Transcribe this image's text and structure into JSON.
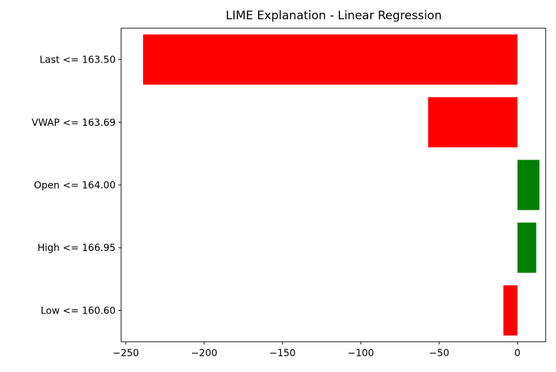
{
  "chart_data": {
    "type": "bar",
    "orientation": "horizontal",
    "title": "LIME Explanation - Linear Regression",
    "xlabel": "",
    "ylabel": "",
    "categories": [
      "Last <= 163.50",
      "VWAP <= 163.69",
      "Open <= 164.00",
      "High <= 166.95",
      "Low <= 160.60"
    ],
    "values": [
      -239,
      -57,
      14,
      12,
      -9
    ],
    "xlim": [
      -253,
      18
    ],
    "xticks": [
      -250,
      -200,
      -150,
      -100,
      -50,
      0
    ],
    "xtick_labels": [
      "−250",
      "−200",
      "−150",
      "−100",
      "−50",
      "0"
    ],
    "grid": false,
    "colors": {
      "positive": "#008000",
      "negative": "#ff0000"
    }
  }
}
